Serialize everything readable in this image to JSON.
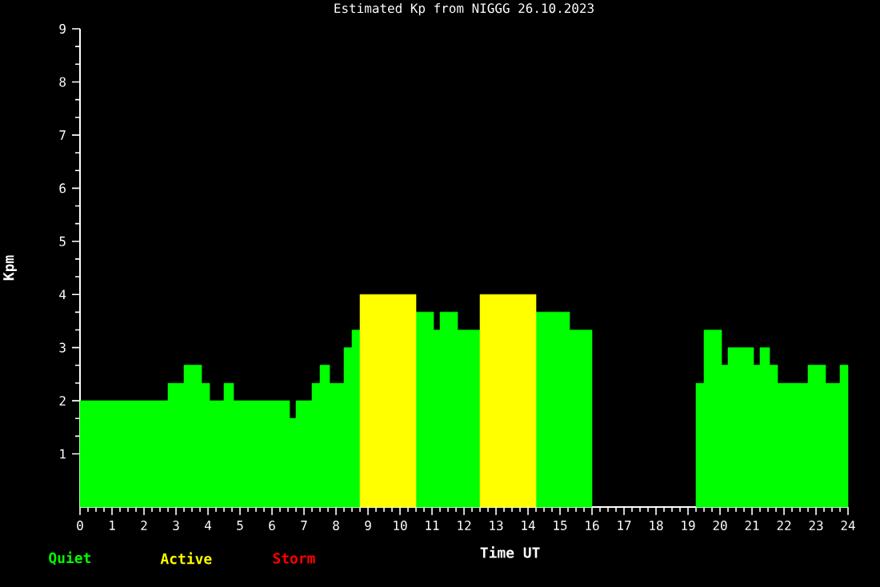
{
  "chart_data": {
    "type": "histogram",
    "title": "Estimated Kp from NIGGG 26.10.2023",
    "xlabel": "Time UT",
    "ylabel": "Kpm",
    "bins": [
      0,
      2.75,
      3.25,
      3.8,
      4.05,
      4.5,
      4.8,
      6.55,
      6.75,
      7.25,
      7.5,
      7.8,
      8.25,
      8.5,
      8.75,
      10.5,
      11.05,
      11.25,
      11.8,
      12.5,
      14.25,
      15.3,
      16,
      19.25,
      19.5,
      20.05,
      20.25,
      21.05,
      21.25,
      21.55,
      21.8,
      22.75,
      23.3,
      23.75,
      24
    ],
    "series": [
      {
        "name": "Quiet",
        "color": "#00ff00",
        "values": [
          2,
          2.33,
          2.67,
          2.33,
          2,
          2.33,
          2,
          1.67,
          2,
          2.33,
          2.67,
          2.33,
          3,
          3.33,
          null,
          3.67,
          3.33,
          3.67,
          3.33,
          null,
          3.67,
          3.33,
          null,
          2.33,
          3.33,
          2.67,
          3,
          2.67,
          3,
          2.67,
          2.33,
          2.67,
          2.33,
          2.67
        ]
      },
      {
        "name": "Active",
        "color": "#ffff00",
        "values": [
          null,
          null,
          null,
          null,
          null,
          null,
          null,
          null,
          null,
          null,
          null,
          null,
          null,
          null,
          4,
          null,
          null,
          null,
          null,
          4,
          null,
          null,
          null,
          null,
          null,
          null,
          null,
          null,
          null,
          null,
          null,
          null,
          null,
          null
        ]
      }
    ],
    "annotations": [
      "Storm"
    ],
    "xlim": [
      0,
      24
    ],
    "xticks": [
      0,
      1,
      2,
      3,
      4,
      5,
      6,
      7,
      8,
      9,
      10,
      11,
      12,
      13,
      14,
      15,
      16,
      17,
      18,
      19,
      20,
      21,
      22,
      23,
      24
    ],
    "ylim": [
      0,
      9
    ],
    "yticks": [
      1,
      2,
      3,
      4,
      5,
      6,
      7,
      8,
      9
    ],
    "legend": "bottom left",
    "grid": false
  }
}
